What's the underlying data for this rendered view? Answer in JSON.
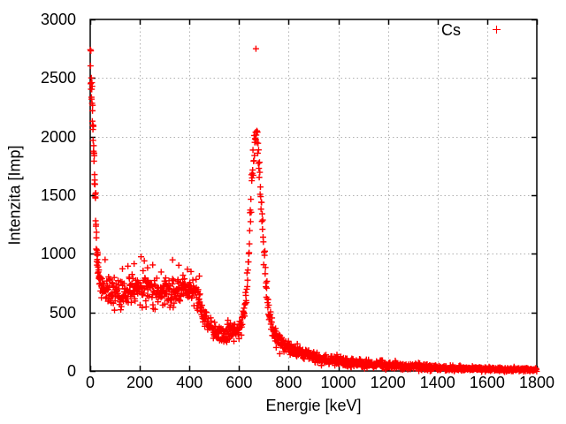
{
  "chart_data": {
    "type": "scatter",
    "title": "",
    "xlabel": "Energie [keV]",
    "ylabel": "Intenzita [Imp]",
    "xlim": [
      0,
      1800
    ],
    "ylim": [
      0,
      3000
    ],
    "xticks": [
      0,
      200,
      400,
      600,
      800,
      1000,
      1200,
      1400,
      1600,
      1800
    ],
    "yticks": [
      0,
      500,
      1000,
      1500,
      2000,
      2500,
      3000
    ],
    "grid": true,
    "grid_style": "dotted",
    "legend": {
      "position": "top-right-inside",
      "entries": [
        {
          "label": "Cs",
          "marker": "plus",
          "color": "#ff0000"
        }
      ]
    },
    "colors": {
      "marker": "#ff0000",
      "grid": "#b0b0b0",
      "axis": "#000000",
      "text": "#000000",
      "background": "#ffffff"
    },
    "series": [
      {
        "name": "Cs",
        "marker": "plus",
        "color": "#ff0000",
        "marker_size": 7,
        "x_step": 1.2,
        "dense_until_x": 40,
        "dense_step": 0.6,
        "noise_sigma_coeff": 2.2,
        "envelope": [
          [
            1,
            2700
          ],
          [
            3,
            2600
          ],
          [
            5,
            2500
          ],
          [
            7,
            2380
          ],
          [
            9,
            2260
          ],
          [
            11,
            2130
          ],
          [
            13,
            2000
          ],
          [
            15,
            1860
          ],
          [
            17,
            1710
          ],
          [
            19,
            1560
          ],
          [
            21,
            1410
          ],
          [
            23,
            1270
          ],
          [
            25,
            1140
          ],
          [
            27,
            1030
          ],
          [
            30,
            930
          ],
          [
            33,
            860
          ],
          [
            36,
            810
          ],
          [
            40,
            770
          ],
          [
            45,
            740
          ],
          [
            50,
            720
          ],
          [
            60,
            700
          ],
          [
            80,
            683
          ],
          [
            100,
            670
          ],
          [
            120,
            663
          ],
          [
            140,
            668
          ],
          [
            160,
            688
          ],
          [
            180,
            712
          ],
          [
            200,
            724
          ],
          [
            220,
            718
          ],
          [
            240,
            708
          ],
          [
            260,
            688
          ],
          [
            280,
            668
          ],
          [
            300,
            658
          ],
          [
            320,
            664
          ],
          [
            340,
            678
          ],
          [
            360,
            688
          ],
          [
            380,
            694
          ],
          [
            400,
            688
          ],
          [
            415,
            672
          ],
          [
            430,
            645
          ],
          [
            445,
            560
          ],
          [
            460,
            470
          ],
          [
            475,
            400
          ],
          [
            490,
            355
          ],
          [
            505,
            330
          ],
          [
            520,
            318
          ],
          [
            535,
            314
          ],
          [
            550,
            318
          ],
          [
            565,
            325
          ],
          [
            580,
            335
          ],
          [
            595,
            355
          ],
          [
            605,
            385
          ],
          [
            615,
            440
          ],
          [
            625,
            560
          ],
          [
            632,
            720
          ],
          [
            638,
            950
          ],
          [
            644,
            1250
          ],
          [
            650,
            1550
          ],
          [
            656,
            1800
          ],
          [
            661,
            1950
          ],
          [
            666,
            2010
          ],
          [
            671,
            2000
          ],
          [
            676,
            1930
          ],
          [
            681,
            1800
          ],
          [
            686,
            1620
          ],
          [
            691,
            1400
          ],
          [
            696,
            1180
          ],
          [
            701,
            980
          ],
          [
            707,
            790
          ],
          [
            713,
            640
          ],
          [
            720,
            510
          ],
          [
            728,
            420
          ],
          [
            737,
            350
          ],
          [
            747,
            300
          ],
          [
            758,
            265
          ],
          [
            770,
            240
          ],
          [
            785,
            215
          ],
          [
            800,
            196
          ],
          [
            820,
            178
          ],
          [
            840,
            163
          ],
          [
            860,
            150
          ],
          [
            880,
            138
          ],
          [
            900,
            126
          ],
          [
            930,
            110
          ],
          [
            960,
            97
          ],
          [
            1000,
            84
          ],
          [
            1050,
            71
          ],
          [
            1100,
            62
          ],
          [
            1150,
            54
          ],
          [
            1200,
            47
          ],
          [
            1250,
            41
          ],
          [
            1300,
            36
          ],
          [
            1350,
            31
          ],
          [
            1400,
            27
          ],
          [
            1450,
            24
          ],
          [
            1500,
            21
          ],
          [
            1550,
            19
          ],
          [
            1600,
            17
          ],
          [
            1650,
            15
          ],
          [
            1700,
            14
          ],
          [
            1750,
            13
          ],
          [
            1800,
            12
          ]
        ],
        "outliers": [
          [
            668,
            2750
          ],
          [
            60,
            950
          ],
          [
            130,
            872
          ],
          [
            152,
            895
          ],
          [
            177,
            915
          ],
          [
            205,
            975
          ],
          [
            218,
            940
          ],
          [
            252,
            905
          ],
          [
            286,
            845
          ],
          [
            332,
            948
          ],
          [
            357,
            902
          ],
          [
            392,
            868
          ],
          [
            440,
            810
          ]
        ]
      }
    ]
  }
}
